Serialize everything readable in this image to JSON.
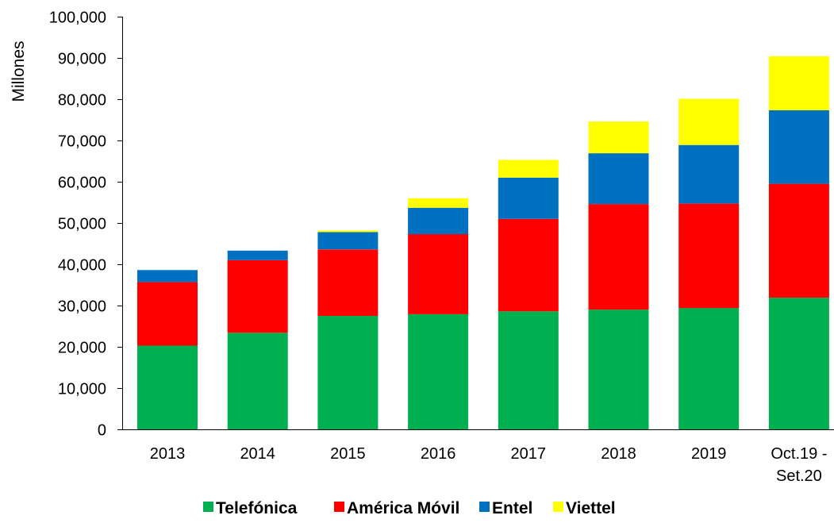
{
  "chart_data": {
    "type": "bar",
    "stacked": true,
    "ylabel": "Millones",
    "ylim": [
      0,
      100000
    ],
    "ytick_step": 10000,
    "ytick_labels": [
      "0",
      "10,000",
      "20,000",
      "30,000",
      "40,000",
      "50,000",
      "60,000",
      "70,000",
      "80,000",
      "90,000",
      "100,000"
    ],
    "categories": [
      "2013",
      "2014",
      "2015",
      "2016",
      "2017",
      "2018",
      "2019",
      "Oct.19 - Set.20"
    ],
    "category_lines": [
      [
        "2013"
      ],
      [
        "2014"
      ],
      [
        "2015"
      ],
      [
        "2016"
      ],
      [
        "2017"
      ],
      [
        "2018"
      ],
      [
        "2019"
      ],
      [
        "Oct.19 -",
        "Set.20"
      ]
    ],
    "series": [
      {
        "name": "Telefónica",
        "color": "#00b050",
        "values": [
          20300,
          23400,
          27500,
          27900,
          28600,
          29000,
          29400,
          31900
        ]
      },
      {
        "name": "América Móvil",
        "color": "#ff0000",
        "values": [
          15400,
          17600,
          16100,
          19400,
          22400,
          25600,
          25300,
          27600
        ]
      },
      {
        "name": "Entel",
        "color": "#0070c0",
        "values": [
          2900,
          2300,
          4200,
          6400,
          10000,
          12300,
          14200,
          17800
        ]
      },
      {
        "name": "Viettel",
        "color": "#ffff00",
        "values": [
          0,
          0,
          400,
          2300,
          4300,
          7700,
          11200,
          13100
        ]
      }
    ],
    "legend_position": "bottom",
    "grid": false
  }
}
